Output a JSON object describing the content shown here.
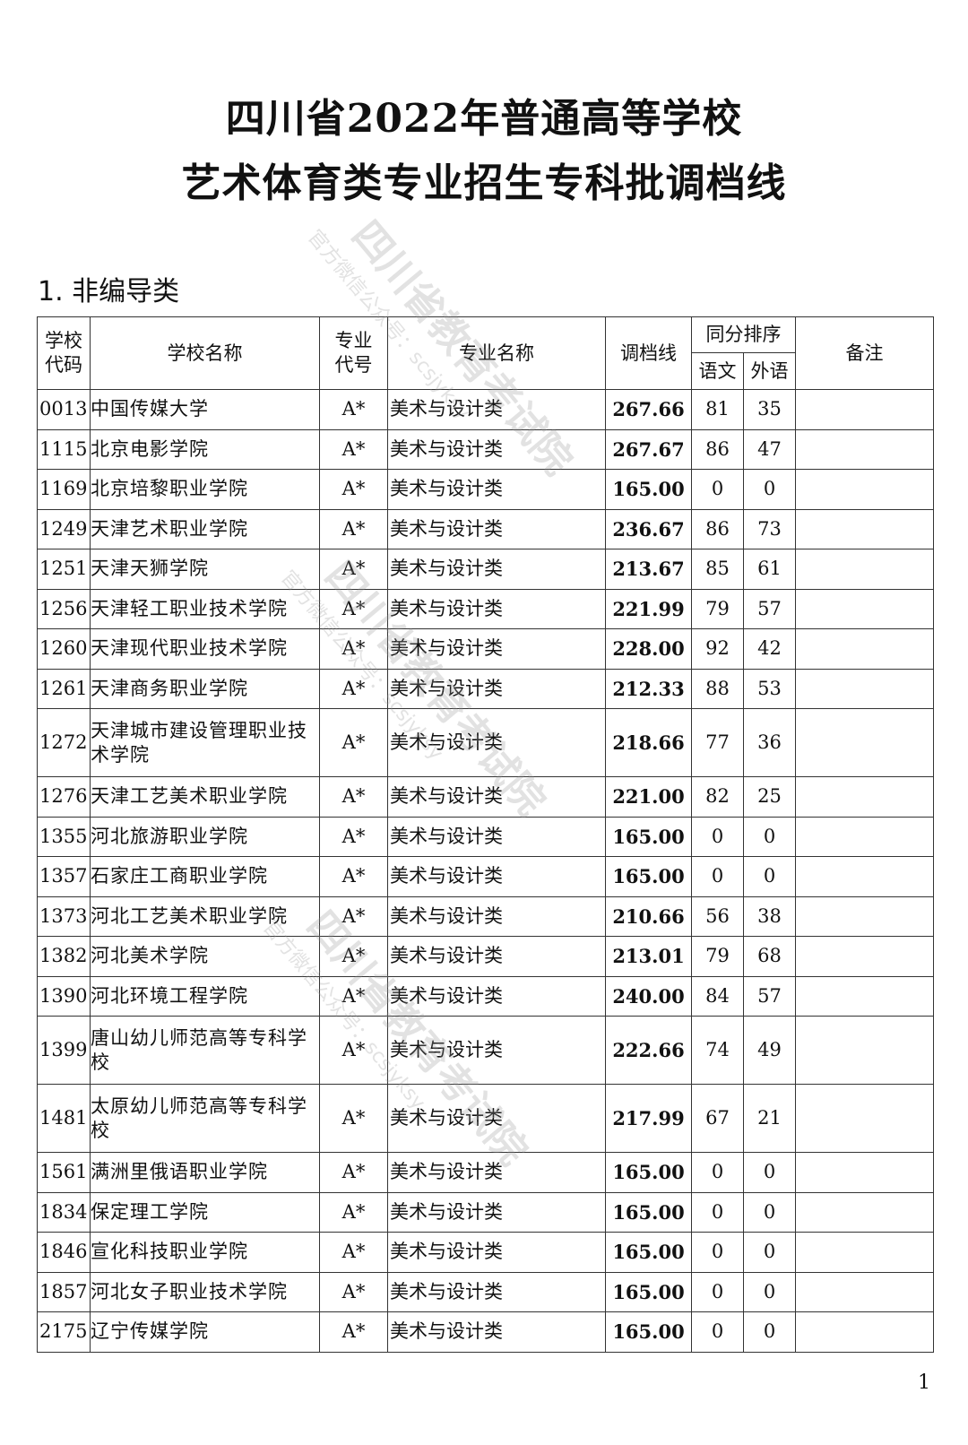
{
  "title_line1": "四川省2022年普通高等学校",
  "title_line2": "艺术体育类专业招生专科批调档线",
  "section_heading": "1. 非编导类",
  "watermark": {
    "org": "四川省教育考试院",
    "account": "官方微信公众号：scsjyksy"
  },
  "table": {
    "headers": {
      "school_code": "学校代码",
      "school_name": "学校名称",
      "major_code": "专业代号",
      "major_name": "专业名称",
      "cutoff": "调档线",
      "tie_rank": "同分排序",
      "chinese": "语文",
      "foreign": "外语",
      "remark": "备注"
    },
    "rows": [
      {
        "code": "0013",
        "school": "中国传媒大学",
        "major_code": "A*",
        "major": "美术与设计类",
        "cutoff": "267.66",
        "chinese": "81",
        "foreign": "35",
        "remark": ""
      },
      {
        "code": "1115",
        "school": "北京电影学院",
        "major_code": "A*",
        "major": "美术与设计类",
        "cutoff": "267.67",
        "chinese": "86",
        "foreign": "47",
        "remark": ""
      },
      {
        "code": "1169",
        "school": "北京培黎职业学院",
        "major_code": "A*",
        "major": "美术与设计类",
        "cutoff": "165.00",
        "chinese": "0",
        "foreign": "0",
        "remark": ""
      },
      {
        "code": "1249",
        "school": "天津艺术职业学院",
        "major_code": "A*",
        "major": "美术与设计类",
        "cutoff": "236.67",
        "chinese": "86",
        "foreign": "73",
        "remark": ""
      },
      {
        "code": "1251",
        "school": "天津天狮学院",
        "major_code": "A*",
        "major": "美术与设计类",
        "cutoff": "213.67",
        "chinese": "85",
        "foreign": "61",
        "remark": ""
      },
      {
        "code": "1256",
        "school": "天津轻工职业技术学院",
        "major_code": "A*",
        "major": "美术与设计类",
        "cutoff": "221.99",
        "chinese": "79",
        "foreign": "57",
        "remark": ""
      },
      {
        "code": "1260",
        "school": "天津现代职业技术学院",
        "major_code": "A*",
        "major": "美术与设计类",
        "cutoff": "228.00",
        "chinese": "92",
        "foreign": "42",
        "remark": ""
      },
      {
        "code": "1261",
        "school": "天津商务职业学院",
        "major_code": "A*",
        "major": "美术与设计类",
        "cutoff": "212.33",
        "chinese": "88",
        "foreign": "53",
        "remark": ""
      },
      {
        "code": "1272",
        "school": "天津城市建设管理职业技术学院",
        "major_code": "A*",
        "major": "美术与设计类",
        "cutoff": "218.66",
        "chinese": "77",
        "foreign": "36",
        "remark": ""
      },
      {
        "code": "1276",
        "school": "天津工艺美术职业学院",
        "major_code": "A*",
        "major": "美术与设计类",
        "cutoff": "221.00",
        "chinese": "82",
        "foreign": "25",
        "remark": ""
      },
      {
        "code": "1355",
        "school": "河北旅游职业学院",
        "major_code": "A*",
        "major": "美术与设计类",
        "cutoff": "165.00",
        "chinese": "0",
        "foreign": "0",
        "remark": ""
      },
      {
        "code": "1357",
        "school": "石家庄工商职业学院",
        "major_code": "A*",
        "major": "美术与设计类",
        "cutoff": "165.00",
        "chinese": "0",
        "foreign": "0",
        "remark": ""
      },
      {
        "code": "1373",
        "school": "河北工艺美术职业学院",
        "major_code": "A*",
        "major": "美术与设计类",
        "cutoff": "210.66",
        "chinese": "56",
        "foreign": "38",
        "remark": ""
      },
      {
        "code": "1382",
        "school": "河北美术学院",
        "major_code": "A*",
        "major": "美术与设计类",
        "cutoff": "213.01",
        "chinese": "79",
        "foreign": "68",
        "remark": ""
      },
      {
        "code": "1390",
        "school": "河北环境工程学院",
        "major_code": "A*",
        "major": "美术与设计类",
        "cutoff": "240.00",
        "chinese": "84",
        "foreign": "57",
        "remark": ""
      },
      {
        "code": "1399",
        "school": "唐山幼儿师范高等专科学校",
        "major_code": "A*",
        "major": "美术与设计类",
        "cutoff": "222.66",
        "chinese": "74",
        "foreign": "49",
        "remark": ""
      },
      {
        "code": "1481",
        "school": "太原幼儿师范高等专科学校",
        "major_code": "A*",
        "major": "美术与设计类",
        "cutoff": "217.99",
        "chinese": "67",
        "foreign": "21",
        "remark": ""
      },
      {
        "code": "1561",
        "school": "满洲里俄语职业学院",
        "major_code": "A*",
        "major": "美术与设计类",
        "cutoff": "165.00",
        "chinese": "0",
        "foreign": "0",
        "remark": ""
      },
      {
        "code": "1834",
        "school": "保定理工学院",
        "major_code": "A*",
        "major": "美术与设计类",
        "cutoff": "165.00",
        "chinese": "0",
        "foreign": "0",
        "remark": ""
      },
      {
        "code": "1846",
        "school": "宣化科技职业学院",
        "major_code": "A*",
        "major": "美术与设计类",
        "cutoff": "165.00",
        "chinese": "0",
        "foreign": "0",
        "remark": ""
      },
      {
        "code": "1857",
        "school": "河北女子职业技术学院",
        "major_code": "A*",
        "major": "美术与设计类",
        "cutoff": "165.00",
        "chinese": "0",
        "foreign": "0",
        "remark": ""
      },
      {
        "code": "2175",
        "school": "辽宁传媒学院",
        "major_code": "A*",
        "major": "美术与设计类",
        "cutoff": "165.00",
        "chinese": "0",
        "foreign": "0",
        "remark": ""
      }
    ]
  },
  "page_number": "1"
}
